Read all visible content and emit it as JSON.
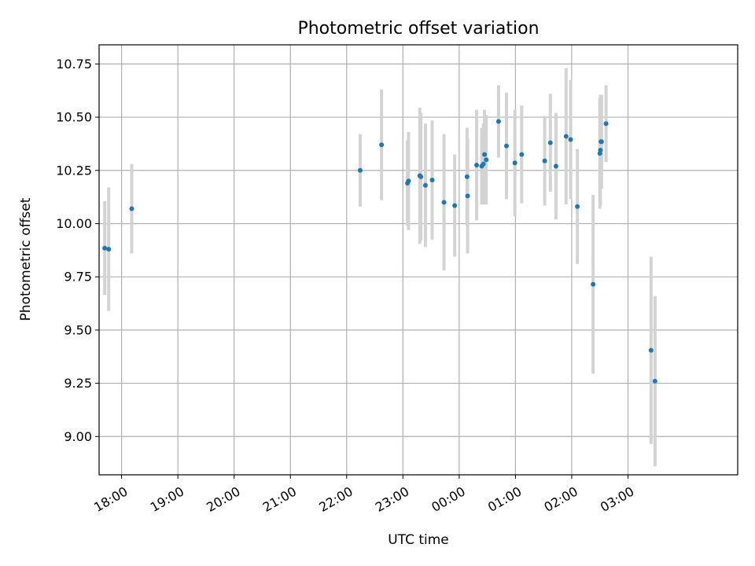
{
  "chart_data": {
    "type": "scatter",
    "title": "Photometric offset variation",
    "xlabel": "UTC time",
    "ylabel": "Photometric offset",
    "grid": true,
    "x_axis": {
      "unit": "hours_utc",
      "range": [
        17.6,
        28.95
      ],
      "ticks": [
        18,
        19,
        20,
        21,
        22,
        23,
        24,
        25,
        26,
        27
      ],
      "tick_labels": [
        "18:00",
        "19:00",
        "20:00",
        "21:00",
        "22:00",
        "23:00",
        "00:00",
        "01:00",
        "02:00",
        "03:00"
      ]
    },
    "y_axis": {
      "range": [
        8.82,
        10.84
      ],
      "ticks": [
        9.0,
        9.25,
        9.5,
        9.75,
        10.0,
        10.25,
        10.5,
        10.75
      ],
      "tick_labels": [
        "9.00",
        "9.25",
        "9.50",
        "9.75",
        "10.00",
        "10.25",
        "10.50",
        "10.75"
      ]
    },
    "colors": {
      "point": "#1f77b4",
      "errorbar": "#d3d3d3",
      "grid": "#b0b0b0"
    },
    "points": [
      {
        "x": 17.7,
        "y": 9.885,
        "err": 0.22
      },
      {
        "x": 17.77,
        "y": 9.88,
        "err": 0.29
      },
      {
        "x": 18.18,
        "y": 10.07,
        "err": 0.21
      },
      {
        "x": 22.24,
        "y": 10.25,
        "err": 0.17
      },
      {
        "x": 22.62,
        "y": 10.37,
        "err": 0.26
      },
      {
        "x": 23.08,
        "y": 10.19,
        "err": 0.2
      },
      {
        "x": 23.1,
        "y": 10.2,
        "err": 0.23
      },
      {
        "x": 23.3,
        "y": 10.225,
        "err": 0.32
      },
      {
        "x": 23.32,
        "y": 10.22,
        "err": 0.3
      },
      {
        "x": 23.4,
        "y": 10.18,
        "err": 0.29
      },
      {
        "x": 23.52,
        "y": 10.205,
        "err": 0.28
      },
      {
        "x": 23.73,
        "y": 10.1,
        "err": 0.32
      },
      {
        "x": 23.92,
        "y": 10.085,
        "err": 0.24
      },
      {
        "x": 24.14,
        "y": 10.22,
        "err": 0.23
      },
      {
        "x": 24.15,
        "y": 10.13,
        "err": 0.27
      },
      {
        "x": 24.31,
        "y": 10.275,
        "err": 0.26
      },
      {
        "x": 24.4,
        "y": 10.27,
        "err": 0.18
      },
      {
        "x": 24.43,
        "y": 10.28,
        "err": 0.19
      },
      {
        "x": 24.45,
        "y": 10.325,
        "err": 0.21
      },
      {
        "x": 24.48,
        "y": 10.3,
        "err": 0.21
      },
      {
        "x": 24.7,
        "y": 10.48,
        "err": 0.17
      },
      {
        "x": 24.84,
        "y": 10.365,
        "err": 0.25
      },
      {
        "x": 24.99,
        "y": 10.285,
        "err": 0.25
      },
      {
        "x": 25.11,
        "y": 10.325,
        "err": 0.23
      },
      {
        "x": 25.52,
        "y": 10.295,
        "err": 0.21
      },
      {
        "x": 25.62,
        "y": 10.38,
        "err": 0.23
      },
      {
        "x": 25.72,
        "y": 10.27,
        "err": 0.25
      },
      {
        "x": 25.9,
        "y": 10.41,
        "err": 0.32
      },
      {
        "x": 25.98,
        "y": 10.395,
        "err": 0.28
      },
      {
        "x": 26.1,
        "y": 10.08,
        "err": 0.27
      },
      {
        "x": 26.38,
        "y": 9.715,
        "err": 0.42
      },
      {
        "x": 26.5,
        "y": 10.33,
        "err": 0.26
      },
      {
        "x": 26.51,
        "y": 10.345,
        "err": 0.26
      },
      {
        "x": 26.52,
        "y": 10.385,
        "err": 0.22
      },
      {
        "x": 26.53,
        "y": 10.385,
        "err": 0.22
      },
      {
        "x": 26.61,
        "y": 10.47,
        "err": 0.18
      },
      {
        "x": 27.41,
        "y": 9.405,
        "err": 0.44
      },
      {
        "x": 27.48,
        "y": 9.26,
        "err": 0.4
      }
    ]
  }
}
